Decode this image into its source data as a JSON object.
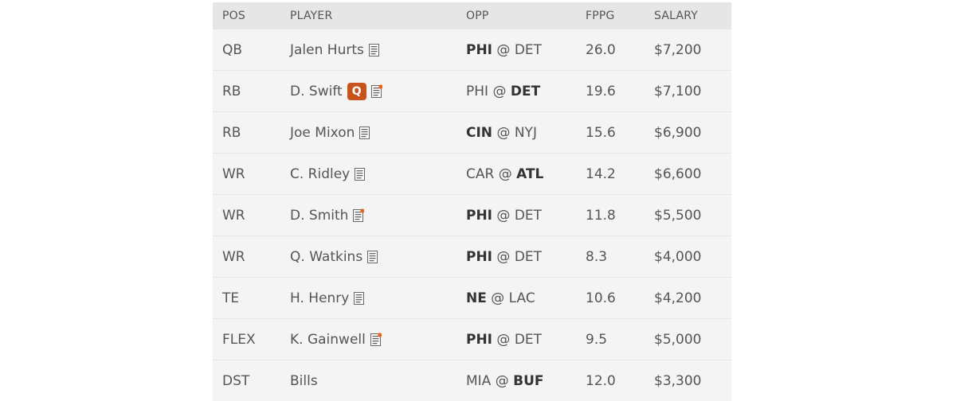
{
  "header": {
    "pos": "POS",
    "player": "PLAYER",
    "opp": "OPP",
    "fppg": "FPPG",
    "salary": "SALARY"
  },
  "accent_color": "#c9531c",
  "rows": [
    {
      "pos": "QB",
      "player": "Jalen Hurts",
      "away": "PHI",
      "at": "@",
      "home": "DET",
      "bold": "away",
      "fppg": "26.0",
      "salary": "$7,200",
      "note_new": false,
      "badge": ""
    },
    {
      "pos": "RB",
      "player": "D. Swift",
      "away": "PHI",
      "at": "@",
      "home": "DET",
      "bold": "home",
      "fppg": "19.6",
      "salary": "$7,100",
      "note_new": true,
      "badge": "Q"
    },
    {
      "pos": "RB",
      "player": "Joe Mixon",
      "away": "CIN",
      "at": "@",
      "home": "NYJ",
      "bold": "away",
      "fppg": "15.6",
      "salary": "$6,900",
      "note_new": false,
      "badge": ""
    },
    {
      "pos": "WR",
      "player": "C. Ridley",
      "away": "CAR",
      "at": "@",
      "home": "ATL",
      "bold": "home",
      "fppg": "14.2",
      "salary": "$6,600",
      "note_new": false,
      "badge": ""
    },
    {
      "pos": "WR",
      "player": "D. Smith",
      "away": "PHI",
      "at": "@",
      "home": "DET",
      "bold": "away",
      "fppg": "11.8",
      "salary": "$5,500",
      "note_new": true,
      "badge": ""
    },
    {
      "pos": "WR",
      "player": "Q. Watkins",
      "away": "PHI",
      "at": "@",
      "home": "DET",
      "bold": "away",
      "fppg": "8.3",
      "salary": "$4,000",
      "note_new": false,
      "badge": ""
    },
    {
      "pos": "TE",
      "player": "H. Henry",
      "away": "NE",
      "at": "@",
      "home": "LAC",
      "bold": "away",
      "fppg": "10.6",
      "salary": "$4,200",
      "note_new": false,
      "badge": ""
    },
    {
      "pos": "FLEX",
      "player": "K. Gainwell",
      "away": "PHI",
      "at": "@",
      "home": "DET",
      "bold": "away",
      "fppg": "9.5",
      "salary": "$5,000",
      "note_new": true,
      "badge": ""
    },
    {
      "pos": "DST",
      "player": "Bills",
      "away": "MIA",
      "at": "@",
      "home": "BUF",
      "bold": "home",
      "fppg": "12.0",
      "salary": "$3,300",
      "note_new": false,
      "badge": "",
      "no_note": true
    }
  ]
}
